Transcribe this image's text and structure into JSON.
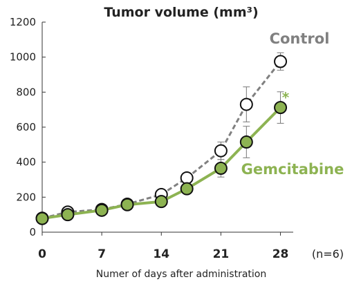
{
  "chart_data": {
    "type": "line",
    "title": "Tumor volume (mm³)",
    "xlabel": "Numer of days after administration",
    "ylabel": "",
    "sample_note": "(n=6)",
    "xlim": [
      0,
      29.5
    ],
    "ylim": [
      0,
      1200
    ],
    "xticks": [
      0,
      7,
      14,
      21,
      28
    ],
    "xtick_labels": [
      "0",
      "7",
      "14",
      "21",
      "28"
    ],
    "yticks": [
      0,
      200,
      400,
      600,
      800,
      1000,
      1200
    ],
    "ytick_labels": [
      "0",
      "200",
      "400",
      "600",
      "800",
      "1000",
      "1200"
    ],
    "grid": false,
    "series": [
      {
        "name": "Control",
        "color": "#808080",
        "marker_fill": "#ffffff",
        "line_style": "dashed",
        "x": [
          0,
          3,
          7,
          10,
          14,
          17,
          21,
          24,
          28
        ],
        "y": [
          80,
          115,
          130,
          160,
          215,
          310,
          465,
          730,
          975
        ],
        "err": [
          0,
          0,
          0,
          0,
          0,
          0,
          50,
          100,
          50
        ]
      },
      {
        "name": "Gemcitabine",
        "color": "#8db352",
        "marker_fill": "#8db352",
        "line_style": "solid",
        "x": [
          0,
          3,
          7,
          10,
          14,
          17,
          21,
          24,
          28
        ],
        "y": [
          78,
          100,
          125,
          157,
          175,
          248,
          365,
          515,
          712
        ],
        "err": [
          0,
          0,
          0,
          0,
          0,
          0,
          50,
          90,
          90
        ]
      }
    ],
    "annotations": [
      {
        "text": "*",
        "color": "#8db352",
        "series": "Gemcitabine",
        "x": 28
      }
    ]
  }
}
